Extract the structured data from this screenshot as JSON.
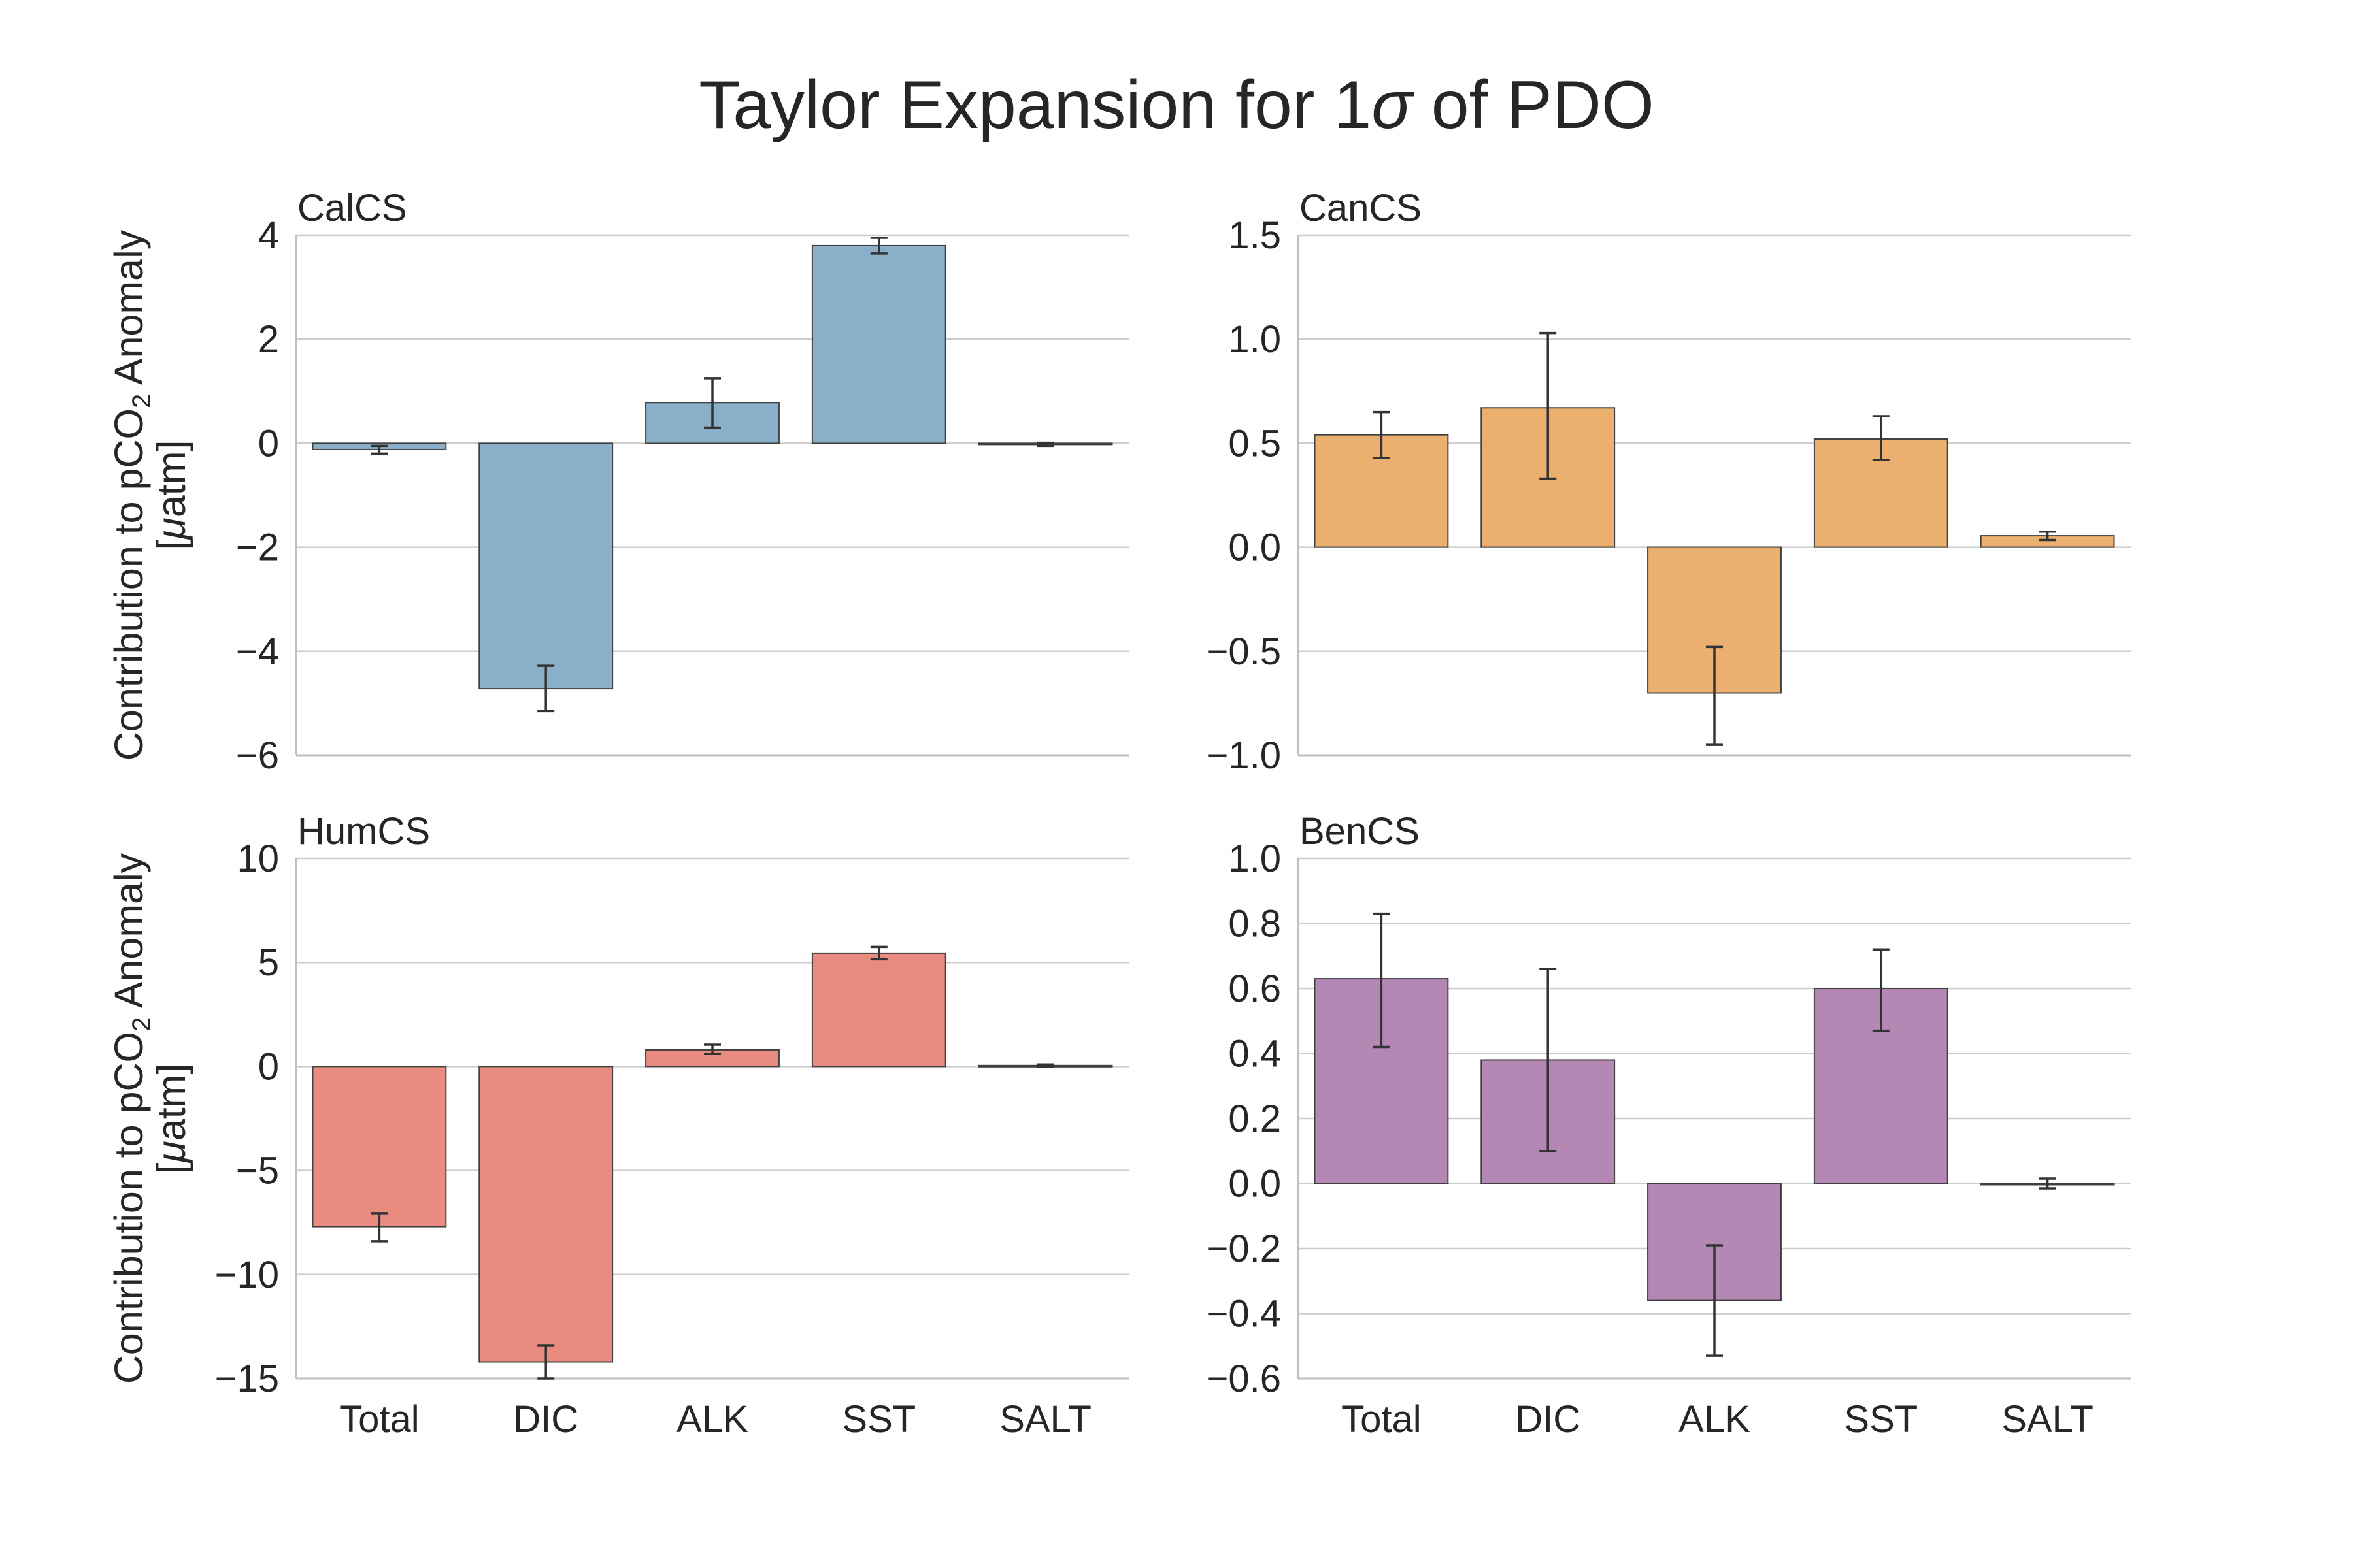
{
  "figure": {
    "title_prefix": "Taylor Expansion for 1",
    "title_symbol": "σ",
    "title_suffix": " of PDO"
  },
  "ylabel": {
    "line1_prefix": "Contribution to pCO",
    "line1_sub": "2",
    "line1_suffix": " Anomaly",
    "line2_open": "[",
    "line2_mu": "μ",
    "line2_rest": "atm]"
  },
  "chart_data": [
    {
      "type": "bar",
      "title": "CalCS",
      "color": "#8aafc9",
      "categories": [
        "Total",
        "DIC",
        "ALK",
        "SST",
        "SALT"
      ],
      "values": [
        -0.12,
        -4.72,
        0.78,
        3.8,
        -0.02
      ],
      "errors": [
        [
          -0.2,
          -0.05
        ],
        [
          -5.15,
          -4.28
        ],
        [
          0.3,
          1.25
        ],
        [
          3.65,
          3.95
        ],
        [
          -0.05,
          0.01
        ]
      ],
      "ylim": [
        -6,
        4
      ],
      "yticks": [
        4,
        2,
        0,
        -2,
        -4,
        -6
      ],
      "ytick_labels": [
        "4",
        "2",
        "0",
        "−2",
        "−4",
        "−6"
      ],
      "grid": true,
      "show_ylabel": true,
      "show_xticks": false
    },
    {
      "type": "bar",
      "title": "CanCS",
      "color": "#ebb070",
      "categories": [
        "Total",
        "DIC",
        "ALK",
        "SST",
        "SALT"
      ],
      "values": [
        0.54,
        0.67,
        -0.7,
        0.52,
        0.055
      ],
      "errors": [
        [
          0.43,
          0.65
        ],
        [
          0.33,
          1.03
        ],
        [
          -0.95,
          -0.48
        ],
        [
          0.42,
          0.63
        ],
        [
          0.035,
          0.075
        ]
      ],
      "ylim": [
        -1.0,
        1.5
      ],
      "yticks": [
        1.5,
        1.0,
        0.5,
        0.0,
        -0.5,
        -1.0
      ],
      "ytick_labels": [
        "1.5",
        "1.0",
        "0.5",
        "0.0",
        "−0.5",
        "−1.0"
      ],
      "grid": true,
      "show_ylabel": false,
      "show_xticks": false
    },
    {
      "type": "bar",
      "title": "HumCS",
      "color": "#e98b7f",
      "categories": [
        "Total",
        "DIC",
        "ALK",
        "SST",
        "SALT"
      ],
      "values": [
        -7.7,
        -14.2,
        0.8,
        5.45,
        0.05
      ],
      "errors": [
        [
          -8.4,
          -7.05
        ],
        [
          -15.0,
          -13.4
        ],
        [
          0.6,
          1.05
        ],
        [
          5.15,
          5.75
        ],
        [
          0.0,
          0.1
        ]
      ],
      "ylim": [
        -15,
        10
      ],
      "yticks": [
        10,
        5,
        0,
        -5,
        -10,
        -15
      ],
      "ytick_labels": [
        "10",
        "5",
        "0",
        "−5",
        "−10",
        "−15"
      ],
      "grid": true,
      "show_ylabel": true,
      "show_xticks": true
    },
    {
      "type": "bar",
      "title": "BenCS",
      "color": "#b587b5",
      "categories": [
        "Total",
        "DIC",
        "ALK",
        "SST",
        "SALT"
      ],
      "values": [
        0.63,
        0.38,
        -0.36,
        0.6,
        0.0
      ],
      "errors": [
        [
          0.42,
          0.83
        ],
        [
          0.1,
          0.66
        ],
        [
          -0.53,
          -0.19
        ],
        [
          0.47,
          0.72
        ],
        [
          -0.015,
          0.015
        ]
      ],
      "ylim": [
        -0.6,
        1.0
      ],
      "yticks": [
        1.0,
        0.8,
        0.6,
        0.4,
        0.2,
        0.0,
        -0.2,
        -0.4,
        -0.6
      ],
      "ytick_labels": [
        "1.0",
        "0.8",
        "0.6",
        "0.4",
        "0.2",
        "0.0",
        "−0.2",
        "−0.4",
        "−0.6"
      ],
      "grid": true,
      "show_ylabel": false,
      "show_xticks": true
    }
  ]
}
